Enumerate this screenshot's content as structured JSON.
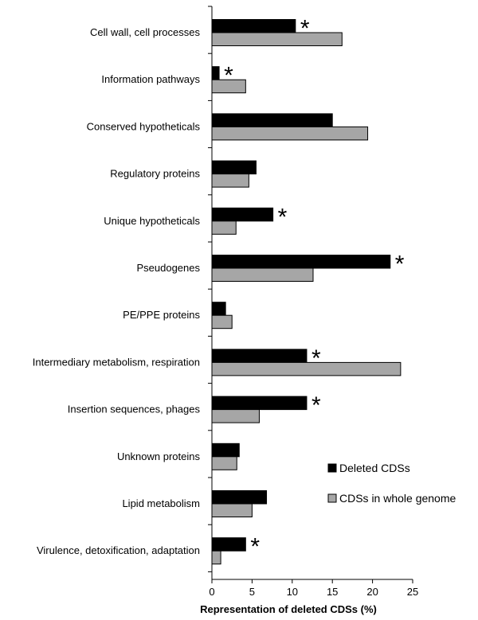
{
  "chart_data": {
    "type": "bar",
    "orientation": "horizontal",
    "title": "",
    "xlabel": "Representation of deleted CDSs (%)",
    "ylabel": "",
    "xlim": [
      0,
      25
    ],
    "xticks": [
      0,
      5,
      10,
      15,
      20,
      25
    ],
    "grid": false,
    "legend_position": "bottom-right",
    "categories": [
      "Cell wall, cell processes",
      "Information pathways",
      "Conserved hypotheticals",
      "Regulatory proteins",
      "Unique hypotheticals",
      "Pseudogenes",
      "PE/PPE proteins",
      "Intermediary metabolism, respiration",
      "Insertion sequences, phages",
      "Unknown proteins",
      "Lipid metabolism",
      "Virulence, detoxification, adaptation"
    ],
    "series": [
      {
        "name": "Deleted CDSs",
        "color": "#000000",
        "values": [
          10.4,
          0.9,
          15.0,
          5.5,
          7.6,
          22.2,
          1.7,
          11.8,
          11.8,
          3.4,
          6.8,
          4.2
        ]
      },
      {
        "name": "CDSs in whole genome",
        "color": "#a6a6a6",
        "values": [
          16.2,
          4.2,
          19.4,
          4.6,
          3.0,
          12.6,
          2.5,
          23.5,
          5.9,
          3.1,
          5.0,
          1.1
        ]
      }
    ],
    "annotations": {
      "marker": "*",
      "significant": [
        true,
        true,
        false,
        false,
        true,
        true,
        false,
        true,
        true,
        false,
        false,
        true
      ]
    }
  }
}
